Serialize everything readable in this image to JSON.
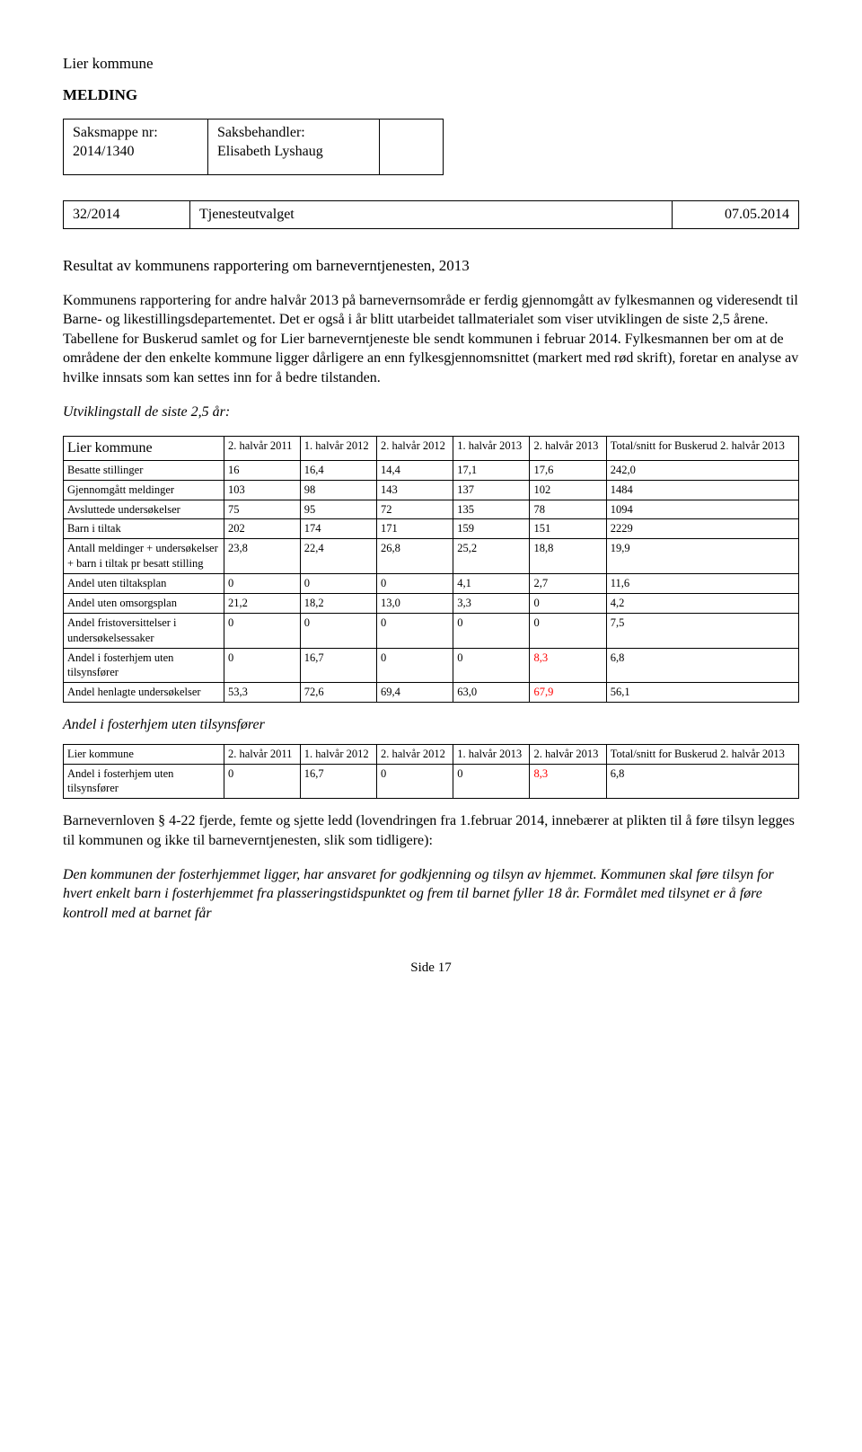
{
  "header": {
    "municipality": "Lier kommune",
    "melding": "MELDING",
    "meta_labels": {
      "saksmappe": "Saksmappe nr:",
      "saksmappe_val": "2014/1340",
      "saksbehandler": "Saksbehandler:",
      "saksbehandler_val": "Elisabeth Lyshaug"
    },
    "ref": {
      "num": "32/2014",
      "committee": "Tjenesteutvalget",
      "date": "07.05.2014"
    }
  },
  "title": "Resultat av kommunens rapportering om barneverntjenesten, 2013",
  "intro": "Kommunens rapportering for andre halvår 2013 på barnevernsområde er ferdig gjennomgått av fylkesmannen og videresendt til Barne- og likestillingsdepartementet. Det er også i år blitt utarbeidet tallmaterialet som viser utviklingen de siste 2,5 årene. Tabellene for Buskerud samlet og for Lier barneverntjeneste ble sendt kommunen i februar 2014. Fylkesmannen ber om at de områdene der den enkelte kommune ligger dårligere an enn fylkesgjennomsnittet (markert med rød skrift), foretar en analyse av hvilke innsats som kan settes inn for å bedre tilstanden.",
  "utvikling_label": "Utviklingstall de siste 2,5 år:",
  "table1": {
    "head_label": "Lier kommune",
    "columns": [
      "2. halvår 2011",
      "1. halvår 2012",
      "2. halvår 2012",
      "1. halvår 2013",
      "2. halvår 2013",
      "Total/snitt for Buskerud 2. halvår 2013"
    ],
    "rows": [
      {
        "label": "Besatte stillinger",
        "vals": [
          "16",
          "16,4",
          "14,4",
          "17,1",
          "17,6",
          "242,0"
        ]
      },
      {
        "label": "Gjennomgått meldinger",
        "vals": [
          "103",
          "98",
          "143",
          "137",
          "102",
          "1484"
        ]
      },
      {
        "label": "Avsluttede undersøkelser",
        "vals": [
          "75",
          "95",
          "72",
          "135",
          "78",
          "1094"
        ]
      },
      {
        "label": "Barn i tiltak",
        "vals": [
          "202",
          "174",
          "171",
          "159",
          "151",
          "2229"
        ]
      },
      {
        "label": "Antall meldinger + undersøkelser + barn i tiltak pr besatt stilling",
        "vals": [
          "23,8",
          "22,4",
          "26,8",
          "25,2",
          "18,8",
          "19,9"
        ]
      },
      {
        "label": "Andel uten tiltaksplan",
        "vals": [
          "0",
          "0",
          "0",
          "4,1",
          "2,7",
          "11,6"
        ]
      },
      {
        "label": "Andel uten omsorgsplan",
        "vals": [
          "21,2",
          "18,2",
          "13,0",
          "3,3",
          "0",
          "4,2"
        ]
      },
      {
        "label": "Andel fristoversittelser i undersøkelsessaker",
        "vals": [
          "0",
          "0",
          "0",
          "0",
          "0",
          "7,5"
        ]
      },
      {
        "label": "Andel i fosterhjem uten tilsynsfører",
        "vals": [
          "0",
          "16,7",
          "0",
          "0",
          "8,3",
          "6,8"
        ],
        "red_cols": [
          4
        ]
      },
      {
        "label": "Andel henlagte undersøkelser",
        "vals": [
          "53,3",
          "72,6",
          "69,4",
          "63,0",
          "67,9",
          "56,1"
        ],
        "red_cols": [
          4
        ]
      }
    ]
  },
  "section2_title": "Andel i fosterhjem uten tilsynsfører",
  "table2": {
    "head_label": "Lier kommune",
    "columns": [
      "2. halvår 2011",
      "1. halvår 2012",
      "2. halvår 2012",
      "1. halvår 2013",
      "2. halvår 2013",
      "Total/snitt for Buskerud 2. halvår 2013"
    ],
    "rows": [
      {
        "label": "Andel i fosterhjem uten tilsynsfører",
        "vals": [
          "0",
          "16,7",
          "0",
          "0",
          "8,3",
          "6,8"
        ],
        "red_cols": [
          4
        ]
      }
    ]
  },
  "law_para": "Barnevernloven § 4-22 fjerde, femte og sjette ledd (lovendringen fra 1.februar 2014, innebærer at plikten til å føre tilsyn legges til kommunen og ikke til barneverntjenesten, slik som tidligere):",
  "law_quote1": "Den kommunen der fosterhjemmet ligger, har ansvaret for godkjenning og tilsyn av hjemmet. Kommunen skal føre tilsyn for hvert enkelt barn i fosterhjemmet fra plasseringstidspunktet og frem til barnet fyller 18 år. Formålet med tilsynet er å føre kontroll med at barnet får",
  "footer": "Side 17"
}
